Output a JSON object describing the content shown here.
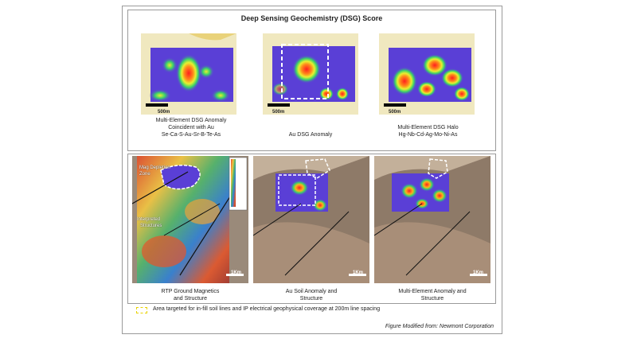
{
  "title": "Deep Sensing Geochemistry (DSG) Score",
  "top_panels": [
    {
      "scale": "500m",
      "caption": [
        "Multi-Element DSG Anomaly",
        "Coincident with Au",
        "Se-Ca-S-Au-Sr-B-Te-As"
      ]
    },
    {
      "scale": "500m",
      "caption": [
        "Au DSG Anomaly"
      ]
    },
    {
      "scale": "500m",
      "caption": [
        "Multi-Element DSG Halo",
        "Hg-Nb-Cd-Ag-Mo-Ni-As"
      ]
    }
  ],
  "bottom_panels": [
    {
      "scale": "1Km",
      "caption": [
        "RTP Ground Magnetics",
        "and Structure"
      ],
      "annotations": [
        "Mag Depletion",
        "Zone",
        "Interpreted",
        "Structures"
      ]
    },
    {
      "scale": "1Km",
      "caption": [
        "Au Soil Anomaly and",
        "Structure"
      ]
    },
    {
      "scale": "1Km",
      "caption": [
        "Multi-Element Anomaly and",
        "Structure"
      ]
    }
  ],
  "legend_text": "Area targeted for in-fill soil lines and IP electrical geophysical coverage at 200m line spacing",
  "credit": "Figure Modified from: Newmont Corporation",
  "colors": {
    "low": "#5a3fd6",
    "mid": "#33c96b",
    "high": "#ff2b1e",
    "dashed": "#ffffff",
    "legend": "#e8d200"
  }
}
